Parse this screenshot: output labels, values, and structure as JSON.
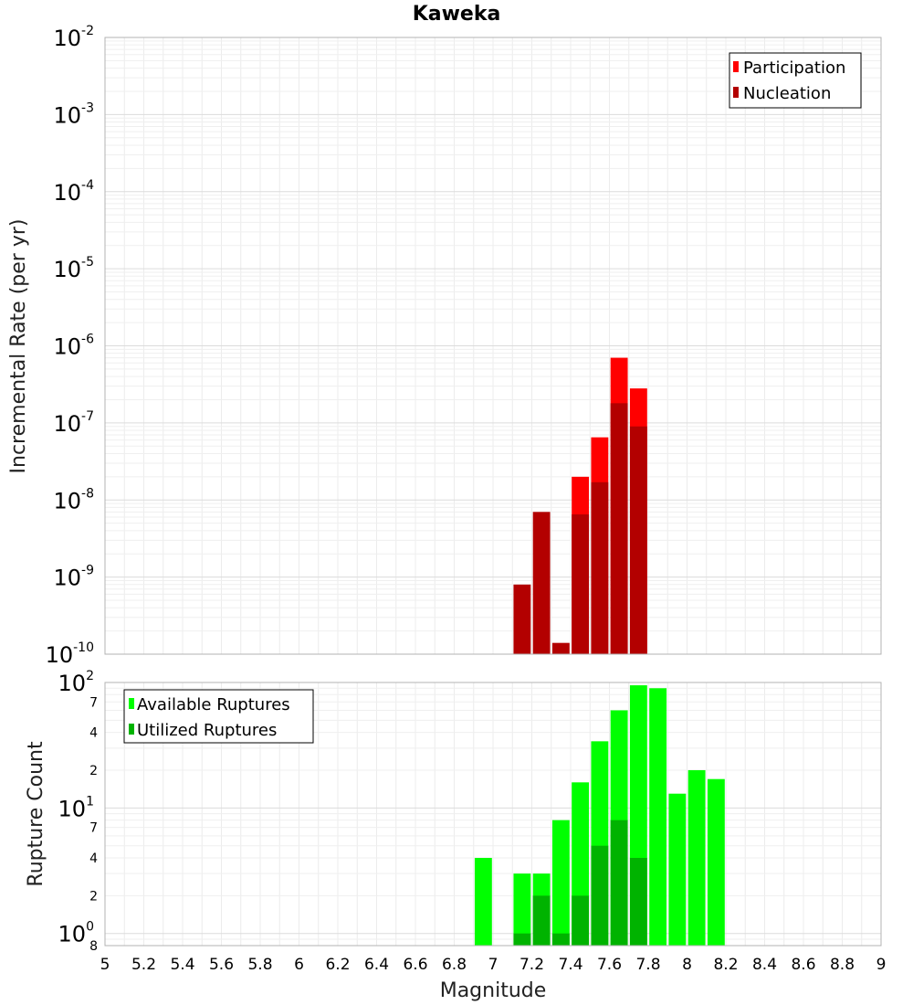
{
  "chart_data": [
    {
      "type": "bar",
      "title": "Kaweka",
      "ylabel": "Incremental Rate (per yr)",
      "yscale": "log",
      "ylim": [
        1e-10,
        0.01
      ],
      "xlim": [
        5,
        9
      ],
      "bar_width": 0.1,
      "grid": true,
      "legend_position": "top-right",
      "y_tick_labels": [
        {
          "base": "10",
          "exp": "-2",
          "value": 0.01
        },
        {
          "base": "10",
          "exp": "-3",
          "value": 0.001
        },
        {
          "base": "10",
          "exp": "-4",
          "value": 0.0001
        },
        {
          "base": "10",
          "exp": "-5",
          "value": 1e-05
        },
        {
          "base": "10",
          "exp": "-6",
          "value": 1e-06
        },
        {
          "base": "10",
          "exp": "-7",
          "value": 1e-07
        },
        {
          "base": "10",
          "exp": "-8",
          "value": 1e-08
        },
        {
          "base": "10",
          "exp": "-9",
          "value": 1e-09
        },
        {
          "base": "10",
          "exp": "-10",
          "value": 1e-10
        }
      ],
      "series": [
        {
          "name": "Participation",
          "color": "#ff0000",
          "x": [
            7.45,
            7.55,
            7.65,
            7.75
          ],
          "values": [
            2e-08,
            6.5e-08,
            7e-07,
            2.8e-07
          ]
        },
        {
          "name": "Nucleation",
          "color": "#b30000",
          "x": [
            7.15,
            7.25,
            7.35,
            7.45,
            7.55,
            7.65,
            7.75
          ],
          "values": [
            8e-10,
            7e-09,
            1.4e-10,
            6.5e-09,
            1.7e-08,
            1.8e-07,
            9e-08
          ]
        }
      ]
    },
    {
      "type": "bar",
      "ylabel": "Rupture Count",
      "xlabel": "Magnitude",
      "yscale": "log",
      "ylim": [
        0.8,
        100
      ],
      "xlim": [
        5,
        9
      ],
      "bar_width": 0.1,
      "grid": true,
      "legend_position": "top-left",
      "x_tick_labels": [
        "5",
        "5.2",
        "5.4",
        "5.6",
        "5.8",
        "6",
        "6.2",
        "6.4",
        "6.6",
        "6.8",
        "7",
        "7.2",
        "7.4",
        "7.6",
        "7.8",
        "8",
        "8.2",
        "8.4",
        "8.6",
        "8.8",
        "9"
      ],
      "y_tick_labels": [
        {
          "base": "10",
          "exp": "2",
          "value": 100
        },
        {
          "base": "10",
          "exp": "1",
          "value": 10
        },
        {
          "base": "10",
          "exp": "0",
          "value": 1
        }
      ],
      "y_minor_labels": [
        {
          "label": "7",
          "value": 70
        },
        {
          "label": "4",
          "value": 40
        },
        {
          "label": "2",
          "value": 20
        },
        {
          "label": "7",
          "value": 7
        },
        {
          "label": "4",
          "value": 4
        },
        {
          "label": "2",
          "value": 2
        },
        {
          "label": "8",
          "value": 0.8
        }
      ],
      "series": [
        {
          "name": "Available Ruptures",
          "color": "#00ff00",
          "x": [
            6.95,
            7.15,
            7.25,
            7.35,
            7.45,
            7.55,
            7.65,
            7.75,
            7.85,
            7.95,
            8.05,
            8.15
          ],
          "values": [
            4,
            3,
            3,
            8,
            16,
            34,
            60,
            95,
            90,
            13,
            20,
            17
          ]
        },
        {
          "name": "Utilized Ruptures",
          "color": "#00b300",
          "x": [
            7.15,
            7.25,
            7.35,
            7.45,
            7.55,
            7.65,
            7.75
          ],
          "values": [
            1,
            2,
            1,
            2,
            5,
            8,
            4
          ]
        }
      ]
    }
  ]
}
